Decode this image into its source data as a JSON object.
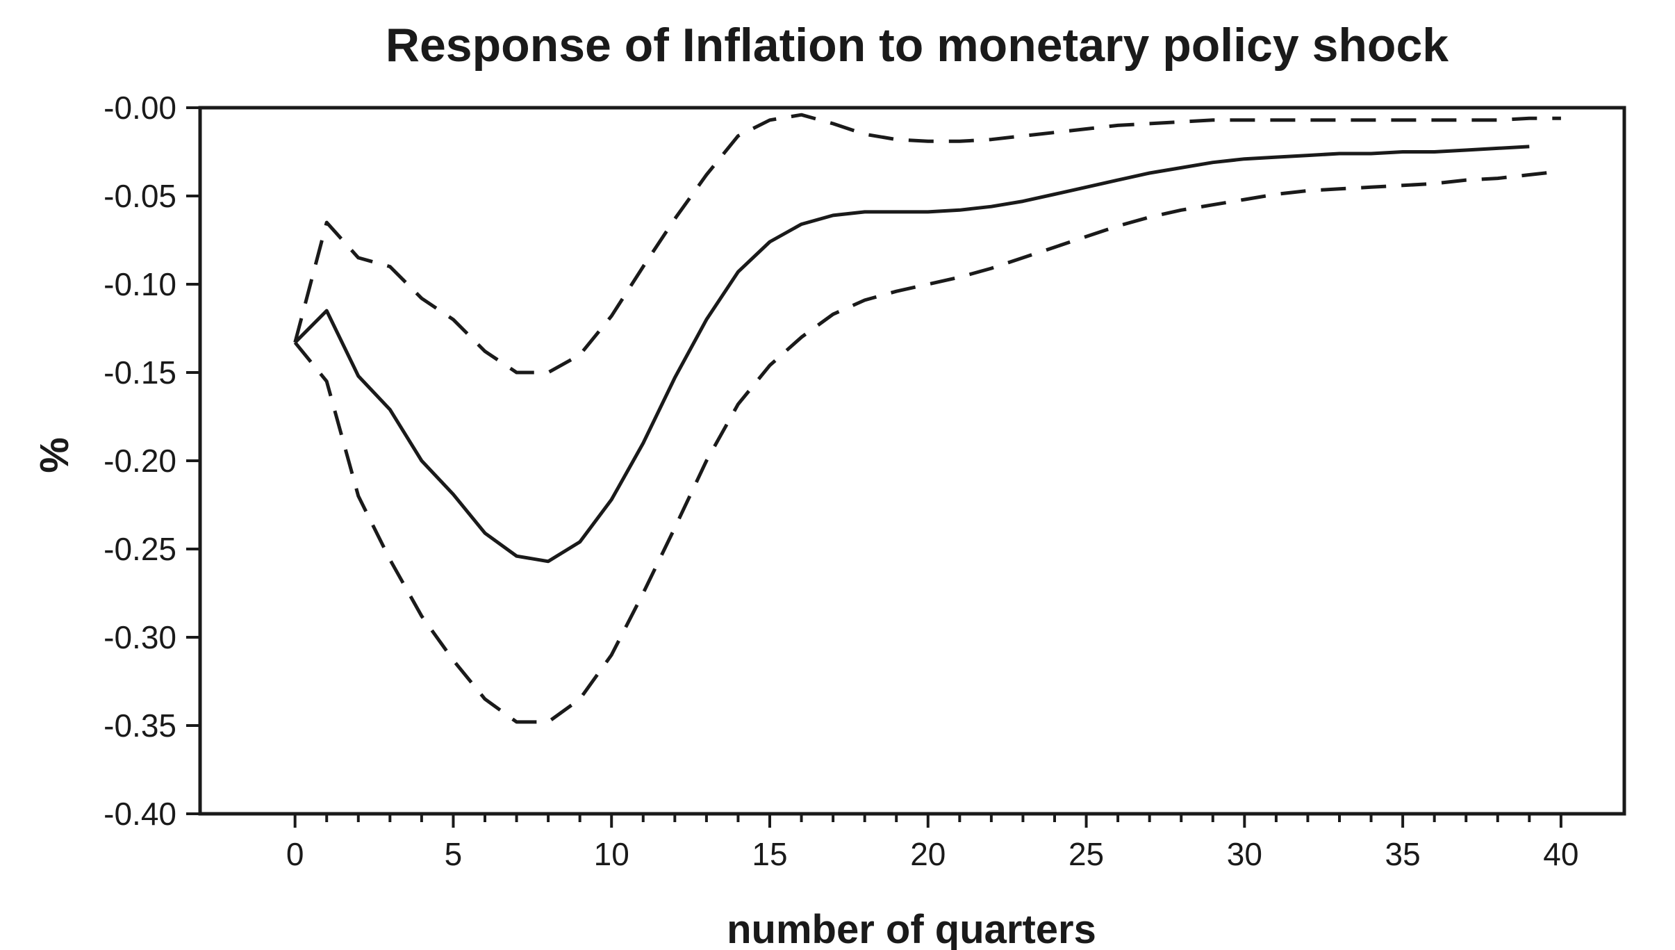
{
  "chart_data": {
    "type": "line",
    "title": "Response of Inflation to monetary policy shock",
    "xlabel": "number of quarters",
    "ylabel": "%",
    "xlim": [
      -3,
      42
    ],
    "ylim": [
      -0.4,
      0.0
    ],
    "x_ticks": [
      0,
      5,
      10,
      15,
      20,
      25,
      30,
      35,
      40
    ],
    "x_tick_labels": [
      "0",
      "5",
      "10",
      "15",
      "20",
      "25",
      "30",
      "35",
      "40"
    ],
    "x_minor_ticks": [
      1,
      2,
      3,
      4,
      6,
      7,
      8,
      9,
      11,
      12,
      13,
      14,
      16,
      17,
      18,
      19,
      21,
      22,
      23,
      24,
      26,
      27,
      28,
      29,
      31,
      32,
      33,
      34,
      36,
      37,
      38,
      39
    ],
    "y_ticks": [
      0.0,
      -0.05,
      -0.1,
      -0.15,
      -0.2,
      -0.25,
      -0.3,
      -0.35,
      -0.4
    ],
    "y_tick_labels": [
      "-0.00",
      "-0.05",
      "-0.10",
      "-0.15",
      "-0.20",
      "-0.25",
      "-0.30",
      "-0.35",
      "-0.40"
    ],
    "grid": false,
    "legend": "none",
    "series": [
      {
        "style": "solid",
        "x": [
          0,
          1,
          2,
          3,
          4,
          5,
          6,
          7,
          8,
          9,
          10,
          11,
          12,
          13,
          14,
          15,
          16,
          17,
          18,
          19,
          20,
          21,
          22,
          23,
          24,
          25,
          26,
          27,
          28,
          29,
          30,
          31,
          32,
          33,
          34,
          35,
          36,
          37,
          38,
          39
        ],
        "values": [
          -0.133,
          -0.115,
          -0.152,
          -0.171,
          -0.2,
          -0.219,
          -0.241,
          -0.254,
          -0.257,
          -0.246,
          -0.222,
          -0.19,
          -0.153,
          -0.12,
          -0.093,
          -0.076,
          -0.066,
          -0.061,
          -0.059,
          -0.059,
          -0.059,
          -0.058,
          -0.056,
          -0.053,
          -0.049,
          -0.045,
          -0.041,
          -0.037,
          -0.034,
          -0.031,
          -0.029,
          -0.028,
          -0.027,
          -0.026,
          -0.026,
          -0.025,
          -0.025,
          -0.024,
          -0.023,
          -0.022
        ]
      },
      {
        "style": "dashed",
        "x": [
          0,
          1,
          2,
          3,
          4,
          5,
          6,
          7,
          8,
          9,
          10,
          11,
          12,
          13,
          14,
          15,
          16,
          17,
          18,
          19,
          20,
          21,
          22,
          23,
          24,
          25,
          26,
          27,
          28,
          29,
          30,
          31,
          32,
          33,
          34,
          35,
          36,
          37,
          38,
          39,
          40
        ],
        "values": [
          -0.133,
          -0.065,
          -0.085,
          -0.09,
          -0.108,
          -0.12,
          -0.138,
          -0.15,
          -0.15,
          -0.14,
          -0.118,
          -0.09,
          -0.063,
          -0.038,
          -0.016,
          -0.007,
          -0.004,
          -0.009,
          -0.015,
          -0.018,
          -0.019,
          -0.019,
          -0.018,
          -0.016,
          -0.014,
          -0.012,
          -0.01,
          -0.009,
          -0.008,
          -0.007,
          -0.007,
          -0.007,
          -0.007,
          -0.007,
          -0.007,
          -0.007,
          -0.007,
          -0.007,
          -0.007,
          -0.006,
          -0.006
        ]
      },
      {
        "style": "dashed",
        "x": [
          0,
          1,
          2,
          3,
          4,
          5,
          6,
          7,
          8,
          9,
          10,
          11,
          12,
          13,
          14,
          15,
          16,
          17,
          18,
          19,
          20,
          21,
          22,
          23,
          24,
          25,
          26,
          27,
          28,
          29,
          30,
          31,
          32,
          33,
          34,
          35,
          36,
          37,
          38,
          39,
          40
        ],
        "values": [
          -0.133,
          -0.155,
          -0.22,
          -0.256,
          -0.288,
          -0.313,
          -0.335,
          -0.348,
          -0.348,
          -0.335,
          -0.31,
          -0.275,
          -0.238,
          -0.2,
          -0.168,
          -0.146,
          -0.13,
          -0.117,
          -0.109,
          -0.104,
          -0.1,
          -0.096,
          -0.091,
          -0.085,
          -0.079,
          -0.073,
          -0.067,
          -0.062,
          -0.058,
          -0.055,
          -0.052,
          -0.049,
          -0.047,
          -0.046,
          -0.045,
          -0.044,
          -0.043,
          -0.041,
          -0.04,
          -0.038,
          -0.036
        ]
      }
    ]
  }
}
